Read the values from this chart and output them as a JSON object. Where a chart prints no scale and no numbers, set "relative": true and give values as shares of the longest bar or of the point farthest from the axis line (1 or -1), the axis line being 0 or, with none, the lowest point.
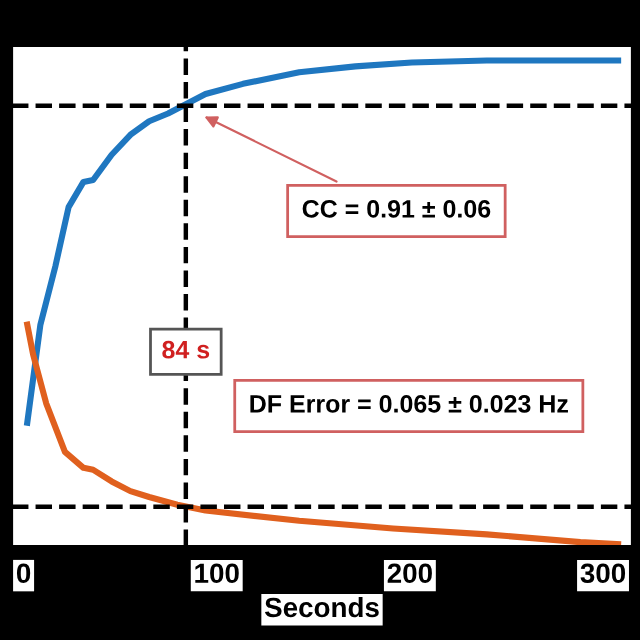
{
  "chart_data": {
    "type": "line",
    "relative": true,
    "xlabel": "Seconds",
    "x": [
      1.9,
      8.7,
      16.5,
      23.3,
      31,
      36,
      45.6,
      55.3,
      65,
      74.8,
      82.5,
      94.2,
      113.6,
      142.7,
      171.8,
      201,
      239.8,
      288.3,
      307.8
    ],
    "series": [
      {
        "color": "#1f77c0",
        "values": [
          0.254,
          0.456,
          0.577,
          0.698,
          0.75,
          0.754,
          0.806,
          0.847,
          0.875,
          0.891,
          0.907,
          0.931,
          0.952,
          0.976,
          0.988,
          0.996,
          1.0,
          1.0,
          1.0
        ]
      },
      {
        "color": "#e0601e",
        "x": [
          1.9,
          4.9,
          11.7,
          21.4,
          31,
          36,
          45.6,
          55.3,
          65,
          79.6,
          94.2,
          142.7,
          191.3,
          239.8,
          288.3,
          307.8
        ],
        "values": [
          0.456,
          0.395,
          0.294,
          0.194,
          0.161,
          0.157,
          0.133,
          0.113,
          0.101,
          0.085,
          0.073,
          0.052,
          0.036,
          0.024,
          0.008,
          0.004
        ]
      }
    ],
    "xlim": [
      -6,
      315
    ],
    "xticks": [
      0,
      100,
      200,
      300
    ],
    "ref_lines": [
      {
        "axis": "x",
        "value": 84,
        "label": "84 s",
        "line_style": "dashed",
        "color": "#000000"
      },
      {
        "axis": "y",
        "value": 0.907,
        "line_style": "dashed",
        "color": "#000000"
      },
      {
        "axis": "y",
        "value": 0.081,
        "line_style": "dashed",
        "color": "#000000"
      }
    ],
    "annotations": [
      {
        "text": "CC = 0.91 ± 0.06",
        "x": 91,
        "y": 0.89
      },
      "DF Error = 0.065 ± 0.023 Hz"
    ],
    "grid": false,
    "legend": false,
    "line_style": "solid",
    "marker": "none"
  }
}
